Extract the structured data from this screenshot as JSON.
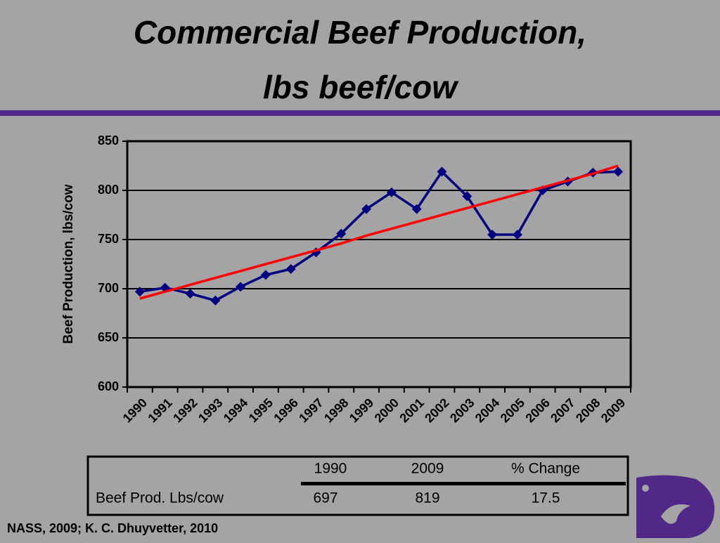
{
  "chart_data": {
    "type": "line",
    "title": [
      "Commercial Beef Production,",
      "lbs beef/cow"
    ],
    "y_label": "Beef Production, lbs/cow",
    "categories": [
      "1990",
      "1991",
      "1992",
      "1993",
      "1994",
      "1995",
      "1996",
      "1997",
      "1998",
      "1999",
      "2000",
      "2001",
      "2002",
      "2003",
      "2004",
      "2005",
      "2006",
      "2007",
      "2008",
      "2009"
    ],
    "series": [
      {
        "name": "Beef Production",
        "color": "#000080",
        "marker": "diamond",
        "values": [
          697,
          701,
          695,
          688,
          702,
          714,
          720,
          737,
          756,
          781,
          798,
          781,
          819,
          794,
          755,
          755,
          800,
          809,
          818,
          819
        ]
      },
      {
        "color": "#ff0000",
        "values": [
          690,
          697,
          704,
          711,
          718,
          725,
          732,
          739,
          746,
          754,
          761,
          768,
          775,
          782,
          789,
          796,
          803,
          810,
          817,
          825
        ]
      }
    ],
    "ylim": [
      600,
      850
    ],
    "yticks": [
      600,
      650,
      700,
      750,
      800,
      850
    ],
    "grid": true
  },
  "table": {
    "header": [
      "1990",
      "2009",
      "% Change"
    ],
    "rows": [
      {
        "label": "Beef Prod. Lbs/cow",
        "cells": [
          697,
          819,
          17.5
        ]
      }
    ]
  },
  "source": "NASS, 2009; K. C. Dhuyvetter, 2010"
}
